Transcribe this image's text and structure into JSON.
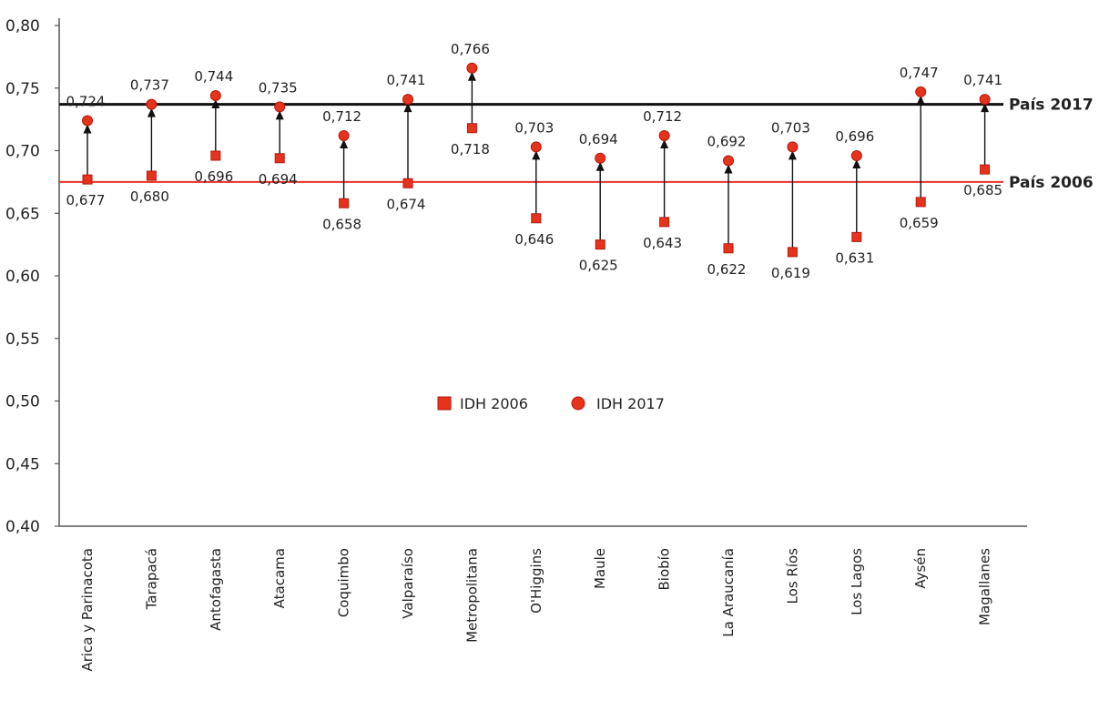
{
  "chart_data": {
    "type": "scatter",
    "ylim": [
      0.4,
      0.8
    ],
    "yticks": [
      "0,40",
      "0,45",
      "0,50",
      "0,55",
      "0,60",
      "0,65",
      "0,70",
      "0,75",
      "0,80"
    ],
    "categories": [
      "Arica y Parinacota",
      "Tarapacá",
      "Antofagasta",
      "Atacama",
      "Coquimbo",
      "Valparaíso",
      "Metropolitana",
      "O'Higgins",
      "Maule",
      "Biobío",
      "La Araucanía",
      "Los Ríos",
      "Los Lagos",
      "Aysén",
      "Magallanes"
    ],
    "series": [
      {
        "name": "IDH 2006",
        "marker": "square",
        "values": [
          0.677,
          0.68,
          0.696,
          0.694,
          0.658,
          0.674,
          0.718,
          0.646,
          0.625,
          0.643,
          0.622,
          0.619,
          0.631,
          0.659,
          0.685
        ],
        "labels": [
          "0,677",
          "0,680",
          "0,696",
          "0,694",
          "0,658",
          "0,674",
          "0,718",
          "0,646",
          "0,625",
          "0,643",
          "0,622",
          "0,619",
          "0,631",
          "0,659",
          "0,685"
        ]
      },
      {
        "name": "IDH 2017",
        "marker": "circle",
        "values": [
          0.724,
          0.737,
          0.744,
          0.735,
          0.712,
          0.741,
          0.766,
          0.703,
          0.694,
          0.712,
          0.692,
          0.703,
          0.696,
          0.747,
          0.741
        ],
        "labels": [
          "0,724",
          "0,737",
          "0,744",
          "0,735",
          "0,712",
          "0,741",
          "0,766",
          "0,703",
          "0,694",
          "0,712",
          "0,692",
          "0,703",
          "0,696",
          "0,747",
          "0,741"
        ]
      }
    ],
    "reference_lines": [
      {
        "label": "País 2017",
        "value": 0.737,
        "color": "#111111"
      },
      {
        "label": "País 2006",
        "value": 0.675,
        "color": "#e8302a"
      }
    ],
    "legend": {
      "placement": "center"
    },
    "grid": false
  },
  "colors": {
    "marker": "#e8321c",
    "marker_stroke": "#b01a10",
    "arrow": "#111111",
    "axis": "#555555"
  }
}
